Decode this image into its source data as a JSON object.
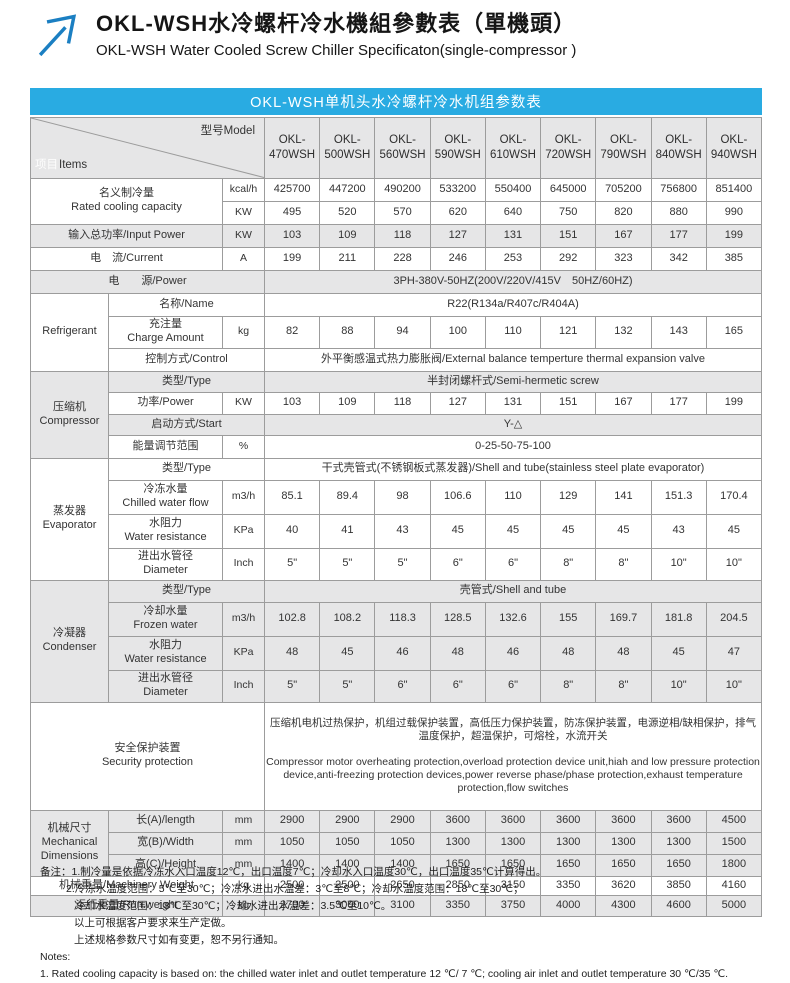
{
  "page": {
    "title_cn": "OKL-WSH水冷螺杆冷水機組參數表（單機頭）",
    "title_en": "OKL-WSH Water Cooled Screw Chiller Specificaton(single-compressor )",
    "logo_icon": "arrow-up-right-icon",
    "accent_blue": "#29abe2",
    "logo_blue": "#1b7fc2",
    "row_gray": "#e6e6e7"
  },
  "banner": {
    "text": "OKL-WSH单机头水冷螺杆冷水机组参数表"
  },
  "table": {
    "corner": {
      "items_cn": "项目",
      "items_en": "Items",
      "model": "型号Model"
    },
    "models": [
      "OKL-\n470WSH",
      "OKL-\n500WSH",
      "OKL-\n560WSH",
      "OKL-\n590WSH",
      "OKL-\n610WSH",
      "OKL-\n720WSH",
      "OKL-\n790WSH",
      "OKL-\n840WSH",
      "OKL-\n940WSH"
    ],
    "rows": {
      "capacity": {
        "label": "名义制冷量\nRated cooling capacity",
        "unit1": "kcal/h",
        "unit2": "KW",
        "kcal": [
          "425700",
          "447200",
          "490200",
          "533200",
          "550400",
          "645000",
          "705200",
          "756800",
          "851400"
        ],
        "kw": [
          "495",
          "520",
          "570",
          "620",
          "640",
          "750",
          "820",
          "880",
          "990"
        ]
      },
      "input_power": {
        "label": "输入总功率/Input Power",
        "unit": "KW",
        "values": [
          "103",
          "109",
          "118",
          "127",
          "131",
          "151",
          "167",
          "177",
          "199"
        ]
      },
      "current": {
        "label": "电　流/Current",
        "unit": "A",
        "values": [
          "199",
          "211",
          "228",
          "246",
          "253",
          "292",
          "323",
          "342",
          "385"
        ]
      },
      "power_supply": {
        "label": "电　　源/Power",
        "value": "3PH-380V-50HZ(200V/220V/415V　50HZ/60HZ)"
      },
      "refrigerant": {
        "group": "Refrigerant",
        "name": {
          "label": "名称/Name",
          "value": "R22(R134a/R407c/R404A)"
        },
        "charge": {
          "label": "充注量\nCharge Amount",
          "unit": "kg",
          "values": [
            "82",
            "88",
            "94",
            "100",
            "110",
            "121",
            "132",
            "143",
            "165"
          ]
        },
        "control": {
          "label": "控制方式/Control",
          "value": "外平衡感温式热力膨胀阀/External balance temperture thermal expansion valve"
        }
      },
      "compressor": {
        "group": "压缩机\nCompressor",
        "type": {
          "label": "类型/Type",
          "value": "半封闭螺杆式/Semi-hermetic screw"
        },
        "power": {
          "label": "功率/Power",
          "unit": "KW",
          "values": [
            "103",
            "109",
            "118",
            "127",
            "131",
            "151",
            "167",
            "177",
            "199"
          ]
        },
        "start": {
          "label": "启动方式/Start",
          "value": "Y-△"
        },
        "energy": {
          "label": "能量调节范围",
          "unit": "%",
          "value": "0-25-50-75-100"
        }
      },
      "evaporator": {
        "group": "蒸发器\nEvaporator",
        "type": {
          "label": "类型/Type",
          "value": "干式壳管式(不锈钢板式蒸发器)/Shell and tube(stainless steel plate evaporator)"
        },
        "flow": {
          "label": "冷冻水量\nChilled water flow",
          "unit": "m3/h",
          "values": [
            "85.1",
            "89.4",
            "98",
            "106.6",
            "110",
            "129",
            "141",
            "151.3",
            "170.4"
          ]
        },
        "resistance": {
          "label": "水阻力\nWater resistance",
          "unit": "KPa",
          "values": [
            "40",
            "41",
            "43",
            "45",
            "45",
            "45",
            "45",
            "43",
            "45"
          ]
        },
        "diameter": {
          "label": "进出水管径\nDiameter",
          "unit": "Inch",
          "values": [
            "5\"",
            "5\"",
            "5\"",
            "6\"",
            "6\"",
            "8\"",
            "8\"",
            "10\"",
            "10\""
          ]
        }
      },
      "condenser": {
        "group": "冷凝器\nCondenser",
        "type": {
          "label": "类型/Type",
          "value": "壳管式/Shell and tube"
        },
        "flow": {
          "label": "冷却水量\nFrozen water",
          "unit": "m3/h",
          "values": [
            "102.8",
            "108.2",
            "118.3",
            "128.5",
            "132.6",
            "155",
            "169.7",
            "181.8",
            "204.5"
          ]
        },
        "resistance": {
          "label": "水阻力\nWater resistance",
          "unit": "KPa",
          "values": [
            "48",
            "45",
            "46",
            "48",
            "46",
            "48",
            "48",
            "45",
            "47"
          ]
        },
        "diameter": {
          "label": "进出水管径\nDiameter",
          "unit": "Inch",
          "values": [
            "5\"",
            "5\"",
            "6\"",
            "6\"",
            "6\"",
            "8\"",
            "8\"",
            "10\"",
            "10\""
          ]
        }
      },
      "security": {
        "label": "安全保护装置\nSecurity protection",
        "text_cn": "压缩机电机过热保护，机组过载保护装置，高低压力保护装置，防冻保护装置，电源逆相/缺相保护，排气温度保护，超温保护，可熔栓，水流开关",
        "text_en": "Compressor motor overheating protection,overload protection device unit,hiah and low pressure protection device,anti-freezing protection devices,power reverse phase/phase protection,exhaust temperature protection,flow switches"
      },
      "dimensions": {
        "group": "机械尺寸\nMechanical\nDimensions",
        "length": {
          "label": "长(A)/length",
          "unit": "mm",
          "values": [
            "2900",
            "2900",
            "2900",
            "3600",
            "3600",
            "3600",
            "3600",
            "3600",
            "4500"
          ]
        },
        "width": {
          "label": "宽(B)/Width",
          "unit": "mm",
          "values": [
            "1050",
            "1050",
            "1050",
            "1300",
            "1300",
            "1300",
            "1300",
            "1300",
            "1500"
          ]
        },
        "height": {
          "label": "高(C)/Height",
          "unit": "mm",
          "values": [
            "1400",
            "1400",
            "1400",
            "1650",
            "1650",
            "1650",
            "1650",
            "1650",
            "1800"
          ]
        }
      },
      "machinery_weight": {
        "label": "机械重量/Machinery Weight",
        "unit": "kg",
        "values": [
          "2500",
          "2500",
          "2650",
          "2850",
          "3150",
          "3350",
          "3620",
          "3850",
          "4160"
        ]
      },
      "run_weight": {
        "label": "运行重量/Run weight",
        "unit": "kg",
        "values": [
          "2700",
          "3000",
          "3100",
          "3350",
          "3750",
          "4000",
          "4300",
          "4600",
          "5000"
        ]
      }
    }
  },
  "notes": {
    "cn": [
      "备注：1.制冷量是依据冷冻水入口温度12℃，出口温度7℃；冷却水入口温度30℃，出口温度35℃计算得出。",
      "2.冷冻水温度范围：5℃至30℃；冷冻水进出水温差：3℃至8℃；冷却水温度范围：18℃至30℃；",
      "冷却水温度范围：18℃至30℃；冷却水进出水温差：3.5℃至10℃。",
      "以上可根据客户要求来生产定做。",
      "上述规格参数尺寸如有变更，恕不另行通知。"
    ],
    "en_label": "Notes:",
    "en": [
      "1. Rated cooling capacity is based on: the chilled water inlet and outlet temperature 12 ℃/ 7 ℃; cooling air inlet and outlet temperature 30 ℃/35 ℃."
    ]
  }
}
